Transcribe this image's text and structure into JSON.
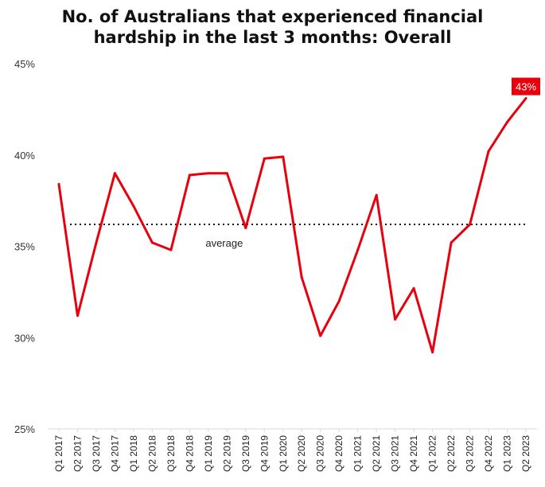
{
  "chart_data": {
    "type": "line",
    "title_line1": "No. of Australians that experienced financial",
    "title_line2": "hardship in the last 3 months: Overall",
    "categories": [
      "Q1 2017",
      "Q2 2017",
      "Q3 2017",
      "Q4 2017",
      "Q1 2018",
      "Q2 2018",
      "Q3 2018",
      "Q4 2018",
      "Q1 2019",
      "Q2 2019",
      "Q3 2019",
      "Q4 2019",
      "Q1 2020",
      "Q2 2020",
      "Q3 2020",
      "Q4 2020",
      "Q1 2021",
      "Q2 2021",
      "Q3 2021",
      "Q4 2021",
      "Q1 2022",
      "Q2 2022",
      "Q3 2022",
      "Q4 2022",
      "Q1 2023",
      "Q2 2023"
    ],
    "series": [
      {
        "values": [
          38.4,
          31.2,
          35.2,
          39.0,
          37.2,
          35.2,
          34.8,
          38.9,
          39.0,
          39.0,
          36.0,
          39.8,
          39.9,
          33.3,
          30.1,
          32.0,
          34.8,
          37.8,
          31.0,
          32.7,
          29.2,
          35.2,
          36.2,
          40.2,
          41.8,
          43.1
        ],
        "color": "#e8000d"
      }
    ],
    "average": {
      "value": 36.2,
      "label": "average"
    },
    "callout": {
      "label": "43%",
      "color": "#e8000d"
    },
    "ylim": [
      25,
      45
    ],
    "yticks": [
      25,
      30,
      35,
      40,
      45
    ],
    "ytick_labels": [
      "25%",
      "30%",
      "35%",
      "40%",
      "45%"
    ],
    "grid": false,
    "legend": false
  }
}
